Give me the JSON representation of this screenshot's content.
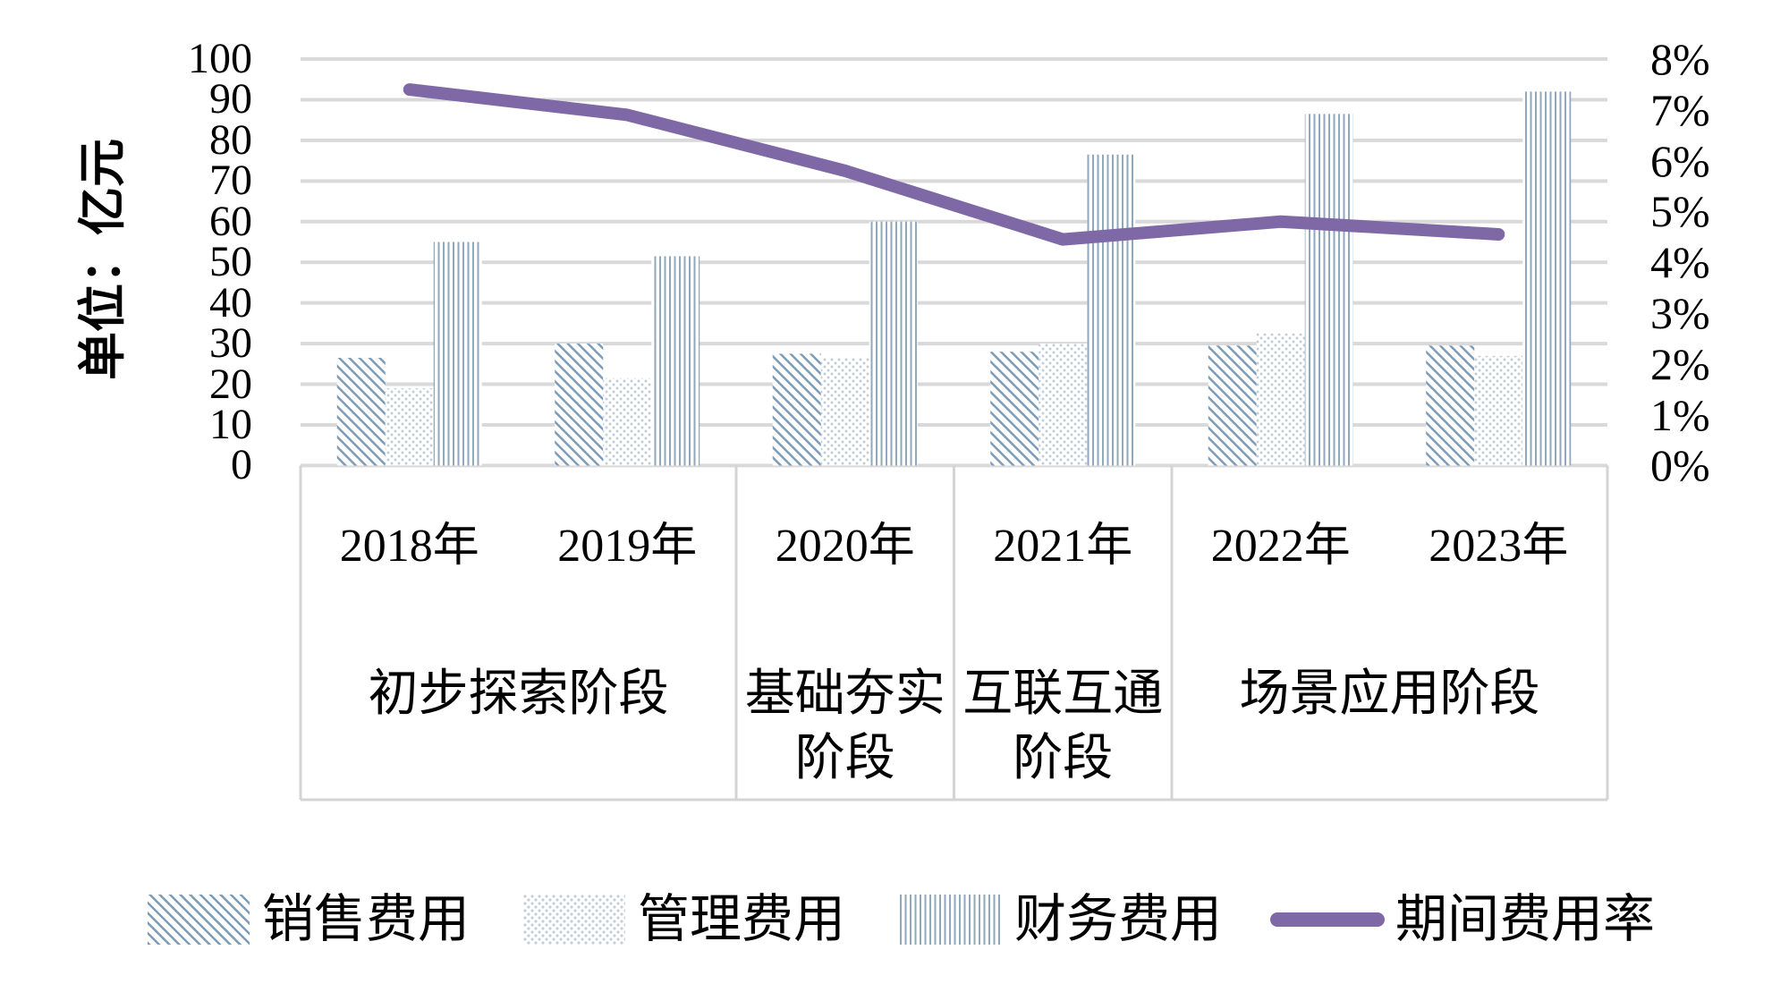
{
  "chart_data": {
    "type": "combo-bar-line",
    "title": "",
    "ylabel": "单位：亿元",
    "categories": [
      "2018年",
      "2019年",
      "2020年",
      "2021年",
      "2022年",
      "2023年"
    ],
    "stages": [
      {
        "label": "初步探索阶段",
        "span": 2,
        "lines": [
          "初步探索阶段"
        ]
      },
      {
        "label": "基础夯实阶段",
        "span": 1,
        "lines": [
          "基础夯实",
          "阶段"
        ]
      },
      {
        "label": "互联互通阶段",
        "span": 1,
        "lines": [
          "互联互通",
          "阶段"
        ]
      },
      {
        "label": "场景应用阶段",
        "span": 2,
        "lines": [
          "场景应用阶段"
        ]
      }
    ],
    "series": [
      {
        "name": "销售费用",
        "pattern": "diagonal-hatch",
        "values": [
          26.5,
          30,
          27.5,
          28,
          29.5,
          29.5
        ]
      },
      {
        "name": "管理费用",
        "pattern": "dots",
        "values": [
          19,
          21.5,
          26.5,
          30,
          32.5,
          27
        ]
      },
      {
        "name": "财务费用",
        "pattern": "vertical-stripes",
        "values": [
          55,
          51.5,
          60,
          76.5,
          86.5,
          92
        ]
      }
    ],
    "line_series": {
      "name": "期间费用率",
      "unit": "%",
      "values": [
        7.4,
        6.9,
        5.8,
        4.45,
        4.8,
        4.55
      ]
    },
    "left_axis": {
      "min": 0,
      "max": 100,
      "step": 10,
      "ticks": [
        "100",
        "90",
        "80",
        "70",
        "60",
        "50",
        "40",
        "30",
        "20",
        "10",
        "0"
      ]
    },
    "right_axis": {
      "min": 0,
      "max": 8,
      "step": 1,
      "suffix": "%",
      "ticks": [
        "8%",
        "7%",
        "6%",
        "5%",
        "4%",
        "3%",
        "2%",
        "1%",
        "0%"
      ]
    },
    "grid": true,
    "legend_position": "bottom",
    "colors": {
      "sales_hatch": "#7c9cb8",
      "admin_dots": "#c2ceda",
      "finance_stripes": "#8fa8be",
      "rate_line": "#7e68a5",
      "gridline": "#d9d9d9",
      "box_border": "#d4d4d4",
      "text": "#000000",
      "background": "#ffffff"
    }
  }
}
